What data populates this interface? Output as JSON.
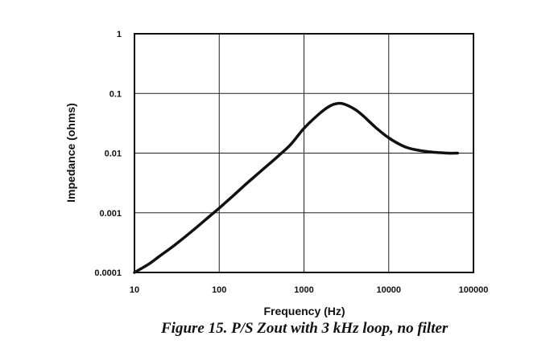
{
  "chart_data": {
    "type": "line",
    "title": "",
    "xlabel": "Frequency (Hz)",
    "ylabel": "Impedance (ohms)",
    "xscale": "log",
    "yscale": "log",
    "xlim": [
      10,
      100000
    ],
    "ylim": [
      0.0001,
      1
    ],
    "grid": true,
    "x_ticks": [
      "10",
      "100",
      "1000",
      "10000",
      "100000"
    ],
    "y_ticks": [
      "0.0001",
      "0.001",
      "0.01",
      "0.1",
      "1"
    ],
    "series": [
      {
        "x": [
          10,
          15,
          20,
          30,
          50,
          70,
          100,
          150,
          200,
          300,
          500,
          700,
          1000,
          1500,
          2000,
          2500,
          3000,
          4000,
          5000,
          7000,
          10000,
          15000,
          20000,
          30000,
          50000,
          65000
        ],
        "y": [
          0.0001,
          0.00014,
          0.00019,
          0.00029,
          0.00052,
          0.00078,
          0.0012,
          0.002,
          0.0029,
          0.0048,
          0.009,
          0.014,
          0.026,
          0.045,
          0.061,
          0.068,
          0.066,
          0.054,
          0.042,
          0.027,
          0.018,
          0.013,
          0.0115,
          0.0105,
          0.01,
          0.01
        ]
      }
    ]
  },
  "caption": "Figure 15. P/S Zout with 3 kHz loop, no filter"
}
